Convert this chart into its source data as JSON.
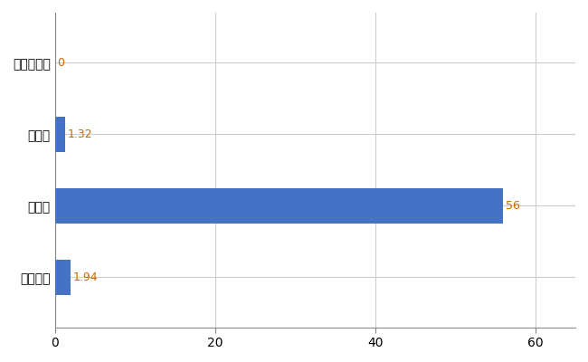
{
  "categories": [
    "全国平均",
    "県最大",
    "県平均",
    "常陸大宮市"
  ],
  "values": [
    1.94,
    56,
    1.32,
    0
  ],
  "bar_color": "#4472c4",
  "value_labels": [
    "1.94",
    "56",
    "1.32",
    "0"
  ],
  "xlim": [
    0,
    65
  ],
  "xticks": [
    0,
    20,
    40,
    60
  ],
  "grid_color": "#cccccc",
  "background_color": "#ffffff",
  "bar_height": 0.5,
  "label_color": "#cc6600"
}
